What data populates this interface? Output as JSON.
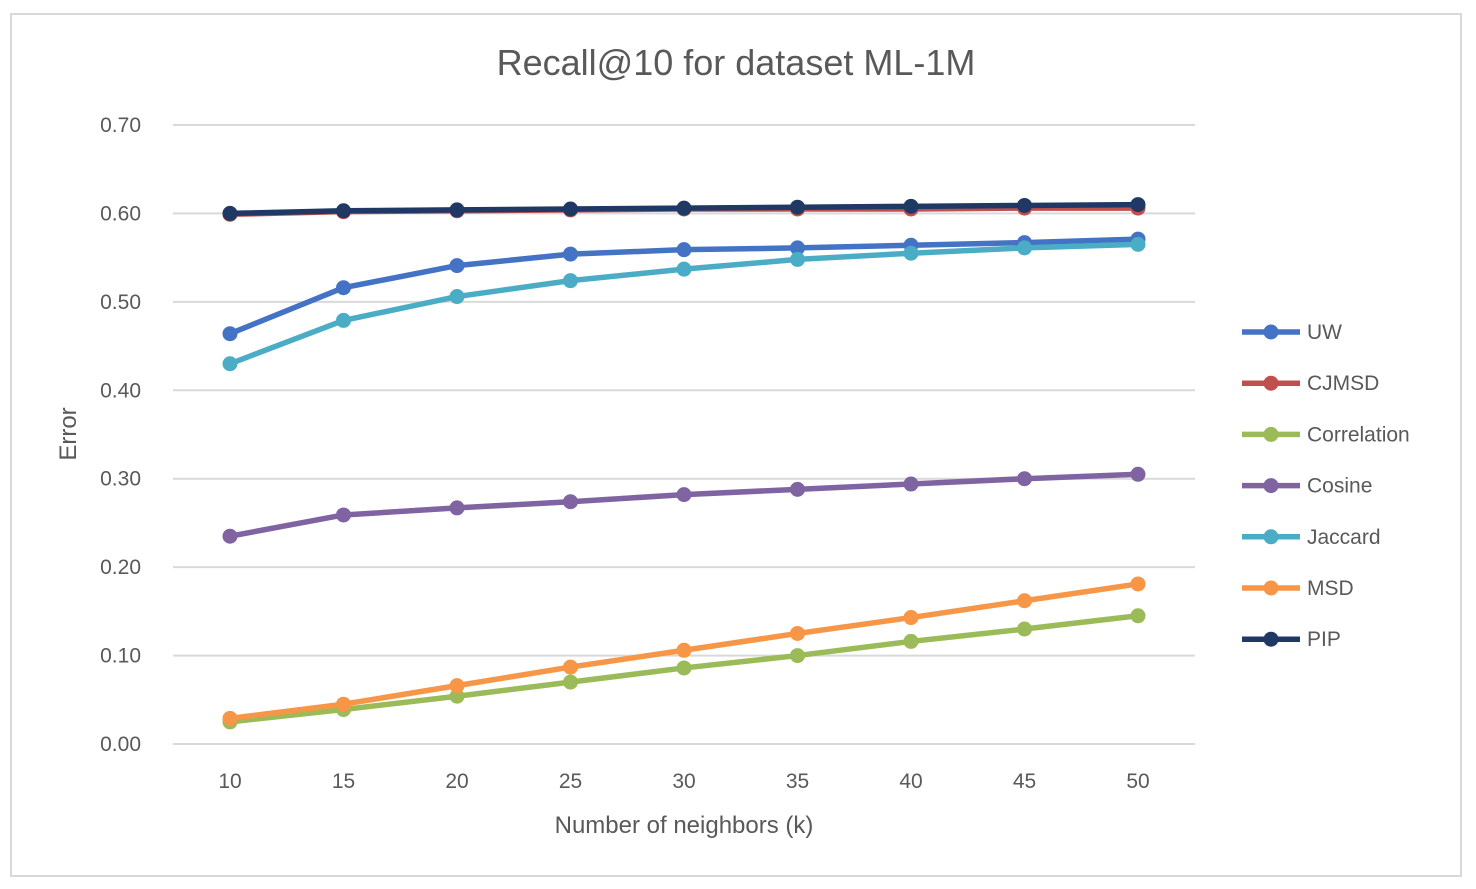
{
  "chart_data": {
    "type": "line",
    "title": "Recall@10 for dataset ML-1M",
    "xlabel": "Number of neighbors (k)",
    "ylabel": "Error",
    "categories": [
      "10",
      "15",
      "20",
      "25",
      "30",
      "35",
      "40",
      "45",
      "50"
    ],
    "y_ticks": [
      "0.00",
      "0.10",
      "0.20",
      "0.30",
      "0.40",
      "0.50",
      "0.60",
      "0.70"
    ],
    "ylim": [
      0,
      0.7
    ],
    "grid": true,
    "legend_position": "right",
    "series": [
      {
        "name": "UW",
        "color": "#4472c4",
        "values": [
          0.464,
          0.516,
          0.541,
          0.554,
          0.559,
          0.561,
          0.564,
          0.567,
          0.571
        ]
      },
      {
        "name": "CJMSD",
        "color": "#c0504d",
        "values": [
          0.599,
          0.602,
          0.603,
          0.604,
          0.605,
          0.605,
          0.605,
          0.606,
          0.606
        ]
      },
      {
        "name": "Correlation",
        "color": "#9bbb59",
        "values": [
          0.025,
          0.039,
          0.054,
          0.07,
          0.086,
          0.1,
          0.116,
          0.13,
          0.145
        ]
      },
      {
        "name": "Cosine",
        "color": "#8064a2",
        "values": [
          0.235,
          0.259,
          0.267,
          0.274,
          0.282,
          0.288,
          0.294,
          0.3,
          0.305
        ]
      },
      {
        "name": "Jaccard",
        "color": "#4bacc6",
        "values": [
          0.43,
          0.479,
          0.506,
          0.524,
          0.537,
          0.548,
          0.555,
          0.561,
          0.565
        ]
      },
      {
        "name": "MSD",
        "color": "#f79646",
        "values": [
          0.029,
          0.045,
          0.066,
          0.087,
          0.106,
          0.125,
          0.143,
          0.162,
          0.181
        ]
      },
      {
        "name": "PIP",
        "color": "#1f3864",
        "values": [
          0.6,
          0.603,
          0.604,
          0.605,
          0.606,
          0.607,
          0.608,
          0.609,
          0.61
        ]
      }
    ]
  }
}
